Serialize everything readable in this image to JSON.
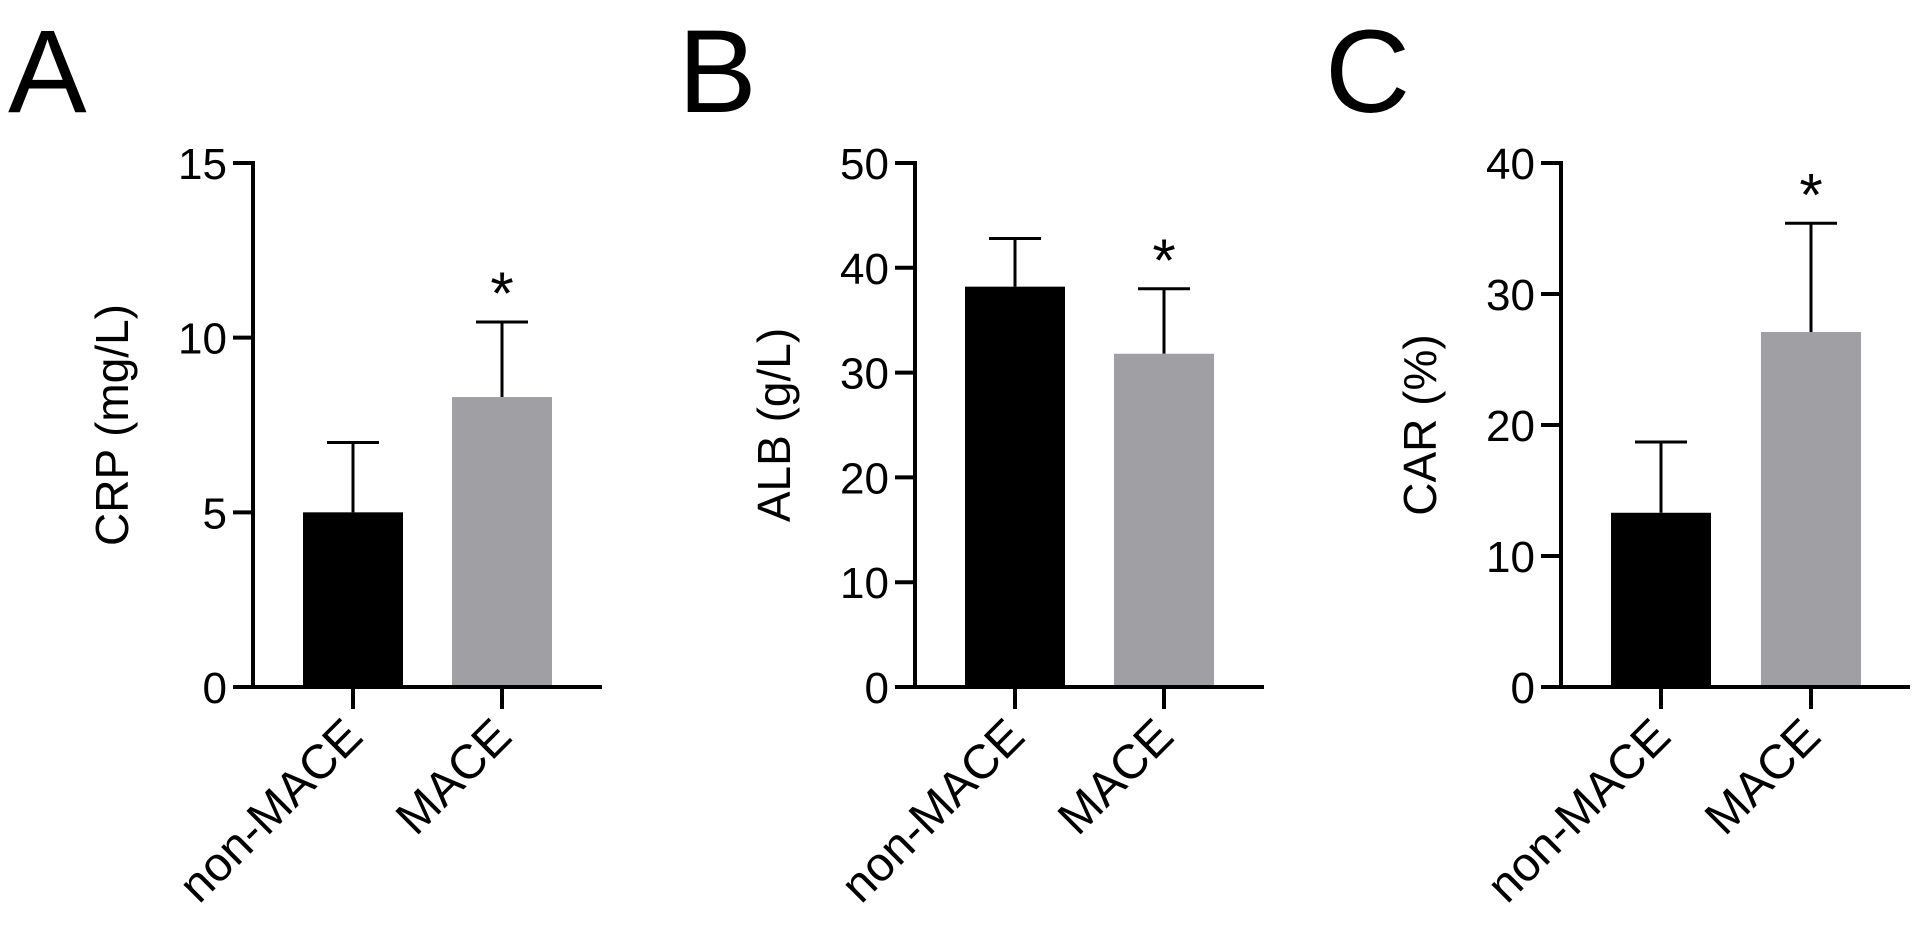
{
  "chart_data": [
    {
      "type": "bar",
      "panel": "A",
      "ylabel": "CRP (mg/L)",
      "ylim": [
        0,
        15
      ],
      "yticks": [
        0,
        5,
        10,
        15
      ],
      "categories": [
        "non-MACE",
        "MACE"
      ],
      "values": [
        5.0,
        8.3
      ],
      "errors": [
        2.0,
        2.15
      ],
      "colors": [
        "#000000",
        "#a0a0a4"
      ],
      "annotations": [
        "",
        "*"
      ]
    },
    {
      "type": "bar",
      "panel": "B",
      "ylabel": "ALB (g/L)",
      "ylim": [
        0,
        50
      ],
      "yticks": [
        0,
        10,
        20,
        30,
        40,
        50
      ],
      "categories": [
        "non-MACE",
        "MACE"
      ],
      "values": [
        38.2,
        31.8
      ],
      "errors": [
        4.6,
        6.2
      ],
      "colors": [
        "#000000",
        "#a0a0a4"
      ],
      "annotations": [
        "",
        "*"
      ]
    },
    {
      "type": "bar",
      "panel": "C",
      "ylabel": "CAR (%)",
      "ylim": [
        0,
        40
      ],
      "yticks": [
        0,
        10,
        20,
        30,
        40
      ],
      "categories": [
        "non-MACE",
        "MACE"
      ],
      "values": [
        13.3,
        27.1
      ],
      "errors": [
        5.4,
        8.3
      ],
      "colors": [
        "#000000",
        "#a0a0a4"
      ],
      "annotations": [
        "",
        "*"
      ]
    }
  ]
}
